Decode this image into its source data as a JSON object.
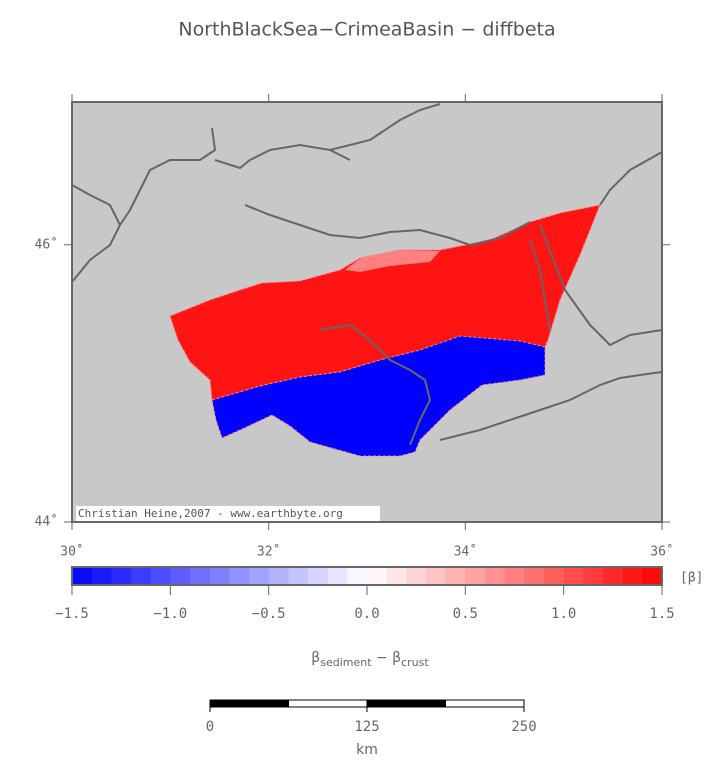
{
  "title": "NorthBlackSea−CrimeaBasin − diffbeta",
  "map": {
    "xlim": [
      30,
      36
    ],
    "ylim": [
      44,
      47.03
    ],
    "xticks": [
      {
        "value": 30,
        "label": "30˚"
      },
      {
        "value": 32,
        "label": "32˚"
      },
      {
        "value": 34,
        "label": "34˚"
      },
      {
        "value": 36,
        "label": "36˚"
      }
    ],
    "yticks": [
      {
        "value": 44,
        "label": "44˚"
      },
      {
        "value": 46,
        "label": "46˚"
      }
    ],
    "credit": "Christian Heine,2007 - www.earthbyte.org"
  },
  "colorbar": {
    "clim": [
      -1.5,
      1.5
    ],
    "colors": [
      "#0000ff",
      "#ffffff",
      "#ff0000"
    ],
    "ticks": [
      {
        "value": -1.5,
        "label": "−1.5"
      },
      {
        "value": -1.0,
        "label": "−1.0"
      },
      {
        "value": -0.5,
        "label": "−0.5"
      },
      {
        "value": 0,
        "label": "0.0"
      },
      {
        "value": 0.5,
        "label": "0.5"
      },
      {
        "value": 1.0,
        "label": "1.0"
      },
      {
        "value": 1.5,
        "label": "1.5"
      }
    ],
    "unit": "[β]",
    "label": [
      "β",
      "sediment",
      " − ",
      "β",
      "crust"
    ]
  },
  "scalebar": {
    "xlim": [
      0,
      250
    ],
    "ticks": [
      0,
      125,
      250
    ],
    "unit": "km"
  }
}
